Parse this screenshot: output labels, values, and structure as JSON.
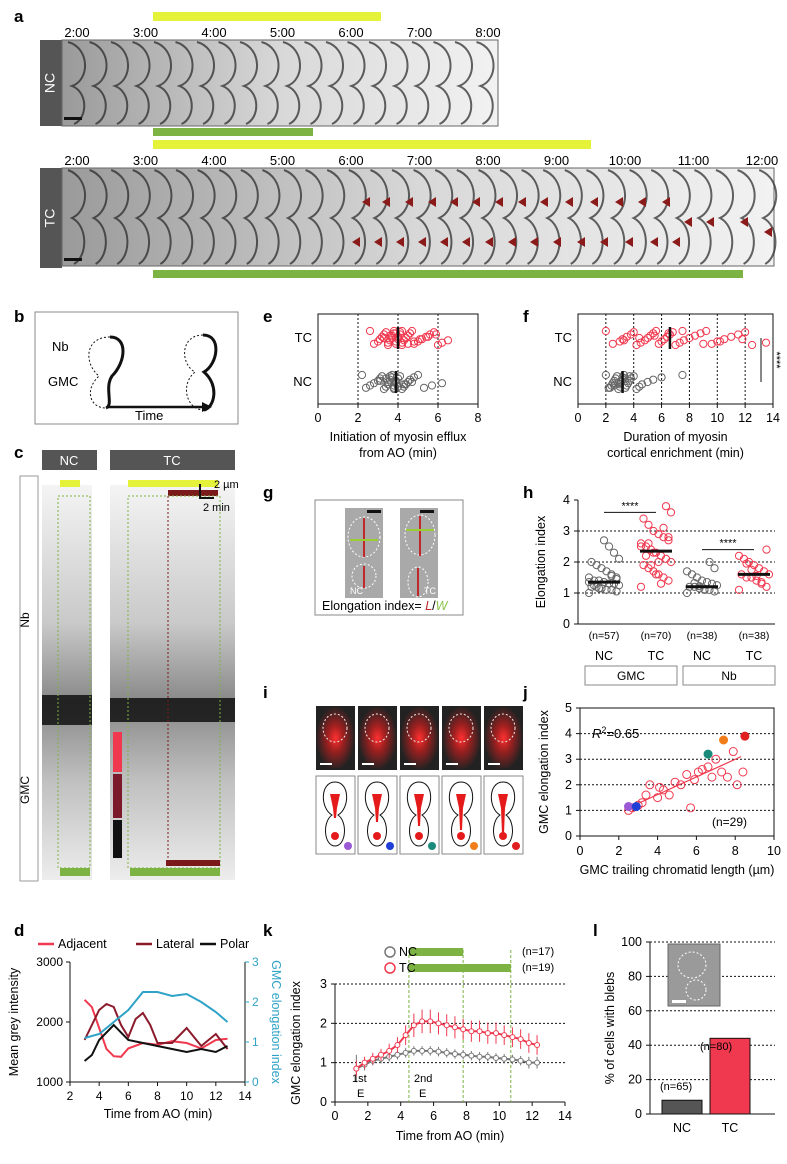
{
  "panel_letters": [
    "a",
    "b",
    "c",
    "d",
    "e",
    "f",
    "g",
    "h",
    "i",
    "j",
    "k",
    "l"
  ],
  "a": {
    "nc_label": "NC",
    "tc_label": "TC",
    "nc_times": [
      "2:00",
      "3:00",
      "4:00",
      "5:00",
      "6:00",
      "7:00",
      "8:00"
    ],
    "tc_times": [
      "2:00",
      "3:00",
      "4:00",
      "5:00",
      "6:00",
      "7:00",
      "8:00",
      "9:00",
      "10:00",
      "11:00",
      "12:00"
    ],
    "colors": {
      "yellow": "#e5f23a",
      "green": "#7cb342",
      "arrow": "#8b1a1a"
    }
  },
  "b": {
    "nb_label": "Nb",
    "gmc_label": "GMC",
    "time_label": "Time"
  },
  "c": {
    "nc_label": "NC",
    "tc_label": "TC",
    "nb_label": "Nb",
    "gmc_label": "GMC",
    "scale_um": "2 µm",
    "scale_min": "2 min"
  },
  "d": {
    "legend": [
      "Adjacent",
      "Lateral",
      "Polar"
    ]
  },
  "g": {
    "nc_label": "NC",
    "tc_label": "TC",
    "formula_prefix": "Elongation index= ",
    "formula_L": "L",
    "formula_slash": "/",
    "formula_W": "W"
  },
  "h": {
    "group_labels": [
      "GMC",
      "Nb"
    ]
  },
  "j": {
    "r2_label": "R",
    "r2_value": "=0.65",
    "r2_sup": "2",
    "n_label": "(n=29)"
  },
  "k": {
    "k_labels": [
      "1st",
      "2nd"
    ],
    "e_labels": [
      "E",
      "E"
    ],
    "legend_n": [
      "(n=17)",
      "(n=19)"
    ]
  },
  "l": {
    "n_labels": [
      "(n=65)",
      "(n=80)"
    ]
  },
  "chart_data": [
    {
      "panel": "d",
      "type": "line",
      "xlabel": "Time from AO (min)",
      "ylabel": "Mean grey intensity",
      "y2label": "GMC elongation index",
      "xlim": [
        2,
        14
      ],
      "ylim": [
        1000,
        3000
      ],
      "y2lim": [
        0,
        3
      ],
      "xticks": [
        2,
        4,
        6,
        8,
        10,
        12,
        14
      ],
      "yticks": [
        1000,
        2000,
        3000
      ],
      "y2ticks": [
        0,
        1,
        2,
        3
      ],
      "series": [
        {
          "name": "Adjacent",
          "color": "#f0394f",
          "x": [
            3,
            3.5,
            4,
            4.5,
            5,
            5.5,
            6,
            7,
            8,
            9,
            10,
            11,
            12,
            12.8
          ],
          "y": [
            2370,
            2250,
            1900,
            1550,
            1430,
            1420,
            1560,
            1650,
            1620,
            1680,
            1650,
            1560,
            1700,
            1720
          ]
        },
        {
          "name": "Lateral",
          "color": "#8b1a2a",
          "x": [
            3,
            3.5,
            4,
            4.5,
            5,
            5.5,
            6,
            6.5,
            7,
            7.5,
            8,
            9,
            10,
            11,
            12,
            12.8
          ],
          "y": [
            1700,
            1950,
            2200,
            2300,
            2250,
            1950,
            1750,
            2050,
            2150,
            1950,
            1650,
            1650,
            1900,
            1600,
            1800,
            1550
          ]
        },
        {
          "name": "Polar",
          "color": "#111111",
          "x": [
            3,
            3.5,
            4,
            5,
            6,
            7,
            8,
            9,
            10,
            11,
            12,
            12.8
          ],
          "y": [
            1350,
            1450,
            1700,
            1950,
            1700,
            1650,
            1600,
            1550,
            1500,
            1550,
            1500,
            1600
          ]
        },
        {
          "name": "GMC elongation index",
          "color": "#2fa3c7",
          "axis": "right",
          "x": [
            3,
            4,
            5,
            6,
            7,
            8,
            9,
            10,
            11,
            12,
            12.8
          ],
          "y": [
            1.1,
            1.2,
            1.5,
            1.8,
            2.25,
            2.25,
            2.15,
            2.2,
            2.0,
            1.75,
            1.5
          ]
        }
      ]
    },
    {
      "panel": "e",
      "type": "scatter",
      "xlabel": "Initiation of myosin efflux from AO (min)",
      "xlim": [
        0,
        8
      ],
      "xticks": [
        0,
        2,
        4,
        6,
        8
      ],
      "categories": [
        "TC",
        "NC"
      ],
      "series": [
        {
          "name": "TC",
          "color": "#f0394f",
          "mean": 4.0,
          "values": [
            2.6,
            2.8,
            3.0,
            3.1,
            3.2,
            3.3,
            3.4,
            3.5,
            3.5,
            3.6,
            3.7,
            3.7,
            3.8,
            3.8,
            3.9,
            3.9,
            4.0,
            4.0,
            4.1,
            4.1,
            4.2,
            4.2,
            4.3,
            4.4,
            4.5,
            4.6,
            4.7,
            4.8,
            5.0,
            5.2,
            5.4,
            5.6,
            5.8,
            6.0,
            6.2,
            6.5,
            3.3,
            3.6,
            3.9,
            4.2,
            4.5,
            4.8,
            5.1,
            5.5,
            5.9
          ]
        },
        {
          "name": "NC",
          "color": "#666666",
          "mean": 3.9,
          "values": [
            2.2,
            2.4,
            2.6,
            2.8,
            3.0,
            3.1,
            3.2,
            3.3,
            3.4,
            3.5,
            3.5,
            3.6,
            3.7,
            3.7,
            3.8,
            3.8,
            3.9,
            3.9,
            4.0,
            4.1,
            4.2,
            4.3,
            4.4,
            4.5,
            4.6,
            4.8,
            5.0,
            5.3,
            5.7,
            6.2,
            3.1,
            3.4,
            3.6,
            3.8,
            4.0,
            4.3,
            4.7
          ]
        }
      ]
    },
    {
      "panel": "f",
      "type": "scatter",
      "xlabel": "Duration of myosin cortical enrichment (min)",
      "xlim": [
        0,
        14
      ],
      "xticks": [
        0,
        2,
        4,
        6,
        8,
        10,
        12,
        14
      ],
      "categories": [
        "TC",
        "NC"
      ],
      "significance": "****",
      "series": [
        {
          "name": "TC",
          "color": "#f0394f",
          "mean": 6.6,
          "values": [
            2.0,
            2.5,
            3.0,
            3.2,
            3.5,
            3.8,
            4.0,
            4.2,
            4.5,
            4.8,
            5.0,
            5.2,
            5.4,
            5.6,
            5.8,
            6.0,
            6.2,
            6.4,
            6.6,
            6.8,
            7.0,
            7.3,
            7.6,
            8.0,
            8.4,
            8.8,
            9.2,
            9.6,
            10.0,
            10.5,
            11.0,
            11.5,
            12.0,
            12.5,
            13.5,
            3.3,
            4.4,
            5.5,
            6.5,
            7.5,
            9.0,
            10.2,
            11.8
          ]
        },
        {
          "name": "NC",
          "color": "#666666",
          "mean": 3.2,
          "values": [
            2.0,
            2.2,
            2.4,
            2.5,
            2.6,
            2.7,
            2.8,
            2.9,
            3.0,
            3.0,
            3.1,
            3.2,
            3.2,
            3.3,
            3.4,
            3.5,
            3.6,
            3.7,
            3.8,
            4.0,
            4.2,
            4.4,
            4.6,
            5.0,
            5.4,
            6.0,
            7.5,
            2.3,
            2.6,
            2.9,
            3.1,
            3.4,
            3.7
          ]
        }
      ]
    },
    {
      "panel": "h",
      "type": "scatter",
      "ylabel": "Elongation index",
      "ylim": [
        0,
        4
      ],
      "yticks": [
        0,
        1,
        2,
        3,
        4
      ],
      "categories": [
        "NC",
        "TC",
        "NC",
        "TC"
      ],
      "groups": [
        "GMC",
        "GMC",
        "Nb",
        "Nb"
      ],
      "n_labels": [
        "(n=57)",
        "(n=70)",
        "(n=38)",
        "(n=38)"
      ],
      "significance": [
        "****",
        "****"
      ],
      "series": [
        {
          "name": "GMC NC",
          "color": "#666666",
          "mean": 1.35,
          "values": [
            1.0,
            1.05,
            1.1,
            1.1,
            1.15,
            1.2,
            1.2,
            1.25,
            1.3,
            1.3,
            1.35,
            1.4,
            1.4,
            1.5,
            1.5,
            1.6,
            1.7,
            1.8,
            1.9,
            2.0,
            2.1,
            2.3,
            2.5,
            2.7,
            1.15,
            1.25,
            1.35,
            1.45,
            1.55
          ]
        },
        {
          "name": "GMC TC",
          "color": "#f0394f",
          "mean": 2.35,
          "values": [
            1.2,
            1.4,
            1.5,
            1.6,
            1.7,
            1.8,
            1.9,
            2.0,
            2.1,
            2.2,
            2.3,
            2.4,
            2.5,
            2.6,
            2.7,
            2.8,
            2.9,
            3.0,
            3.2,
            3.4,
            3.6,
            3.8,
            1.3,
            1.6,
            1.9,
            2.2,
            2.5,
            2.8,
            3.1,
            2.0,
            2.3,
            2.6
          ]
        },
        {
          "name": "Nb NC",
          "color": "#666666",
          "mean": 1.2,
          "values": [
            1.0,
            1.05,
            1.1,
            1.1,
            1.15,
            1.2,
            1.2,
            1.25,
            1.3,
            1.35,
            1.4,
            1.5,
            1.6,
            1.7,
            1.8,
            2.0,
            1.12,
            1.22,
            1.32
          ]
        },
        {
          "name": "Nb TC",
          "color": "#f0394f",
          "mean": 1.6,
          "values": [
            1.1,
            1.2,
            1.3,
            1.4,
            1.5,
            1.5,
            1.6,
            1.6,
            1.7,
            1.8,
            1.9,
            2.0,
            2.1,
            2.2,
            2.4,
            1.35,
            1.55,
            1.75,
            1.95
          ]
        }
      ]
    },
    {
      "panel": "j",
      "type": "scatter",
      "xlabel": "GMC trailing chromatid length (µm)",
      "ylabel": "GMC elongation index",
      "xlim": [
        0,
        10
      ],
      "ylim": [
        0,
        5
      ],
      "xticks": [
        0,
        2,
        4,
        6,
        8,
        10
      ],
      "yticks": [
        0,
        1,
        2,
        3,
        4,
        5
      ],
      "fit": {
        "x": [
          2.5,
          8.3
        ],
        "y": [
          1.1,
          3.1
        ]
      },
      "points": [
        [
          2.5,
          1.0
        ],
        [
          2.7,
          1.1
        ],
        [
          3.0,
          1.2
        ],
        [
          3.2,
          1.3
        ],
        [
          3.6,
          2.0
        ],
        [
          4.0,
          1.5
        ],
        [
          4.3,
          1.8
        ],
        [
          4.6,
          1.6
        ],
        [
          4.9,
          2.1
        ],
        [
          5.2,
          2.0
        ],
        [
          5.5,
          2.4
        ],
        [
          5.7,
          1.1
        ],
        [
          5.9,
          2.2
        ],
        [
          6.1,
          2.5
        ],
        [
          6.3,
          2.6
        ],
        [
          6.6,
          2.7
        ],
        [
          6.8,
          2.3
        ],
        [
          7.0,
          3.0
        ],
        [
          7.3,
          2.5
        ],
        [
          7.6,
          2.3
        ],
        [
          7.9,
          3.3
        ],
        [
          8.1,
          2.0
        ],
        [
          8.4,
          2.5
        ],
        [
          3.4,
          1.6
        ],
        [
          4.1,
          1.9
        ]
      ],
      "highlight": [
        {
          "x": 2.5,
          "y": 1.15,
          "color": "#9b59d6"
        },
        {
          "x": 2.9,
          "y": 1.15,
          "color": "#1f3fd6"
        },
        {
          "x": 6.6,
          "y": 3.2,
          "color": "#1a8a7a"
        },
        {
          "x": 7.4,
          "y": 3.75,
          "color": "#f07d1a"
        },
        {
          "x": 8.5,
          "y": 3.9,
          "color": "#e02020"
        }
      ]
    },
    {
      "panel": "k",
      "type": "line",
      "xlabel": "Time from AO (min)",
      "ylabel": "GMC elongation index",
      "xlim": [
        0,
        14
      ],
      "ylim": [
        0,
        3
      ],
      "xticks": [
        0,
        2,
        4,
        6,
        8,
        10,
        12,
        14
      ],
      "yticks": [
        0,
        1,
        2,
        3
      ],
      "series": [
        {
          "name": "NC",
          "color": "#777777",
          "x": [
            1.3,
            1.8,
            2.3,
            2.8,
            3.3,
            3.8,
            4.3,
            4.8,
            5.3,
            5.8,
            6.3,
            6.8,
            7.3,
            7.8,
            8.3,
            8.8,
            9.3,
            9.8,
            10.3,
            10.8,
            11.3,
            11.8,
            12.3
          ],
          "y": [
            0.85,
            0.95,
            1.05,
            1.1,
            1.15,
            1.2,
            1.25,
            1.3,
            1.3,
            1.3,
            1.28,
            1.25,
            1.22,
            1.2,
            1.18,
            1.15,
            1.15,
            1.12,
            1.1,
            1.08,
            1.05,
            1.0,
            1.0
          ],
          "err": [
            0.35,
            0.15,
            0.12,
            0.12,
            0.12,
            0.12,
            0.12,
            0.12,
            0.12,
            0.12,
            0.12,
            0.12,
            0.12,
            0.12,
            0.12,
            0.12,
            0.12,
            0.12,
            0.12,
            0.12,
            0.12,
            0.15,
            0.15
          ]
        },
        {
          "name": "TC",
          "color": "#f0394f",
          "x": [
            1.3,
            1.8,
            2.3,
            2.8,
            3.3,
            3.8,
            4.3,
            4.8,
            5.3,
            5.8,
            6.3,
            6.8,
            7.3,
            7.8,
            8.3,
            8.8,
            9.3,
            9.8,
            10.3,
            10.8,
            11.3,
            11.8,
            12.3
          ],
          "y": [
            0.85,
            1.0,
            1.1,
            1.2,
            1.3,
            1.45,
            1.7,
            1.95,
            2.05,
            2.05,
            2.0,
            1.95,
            1.9,
            1.85,
            1.8,
            1.8,
            1.75,
            1.75,
            1.7,
            1.65,
            1.6,
            1.5,
            1.45
          ],
          "err": [
            0.2,
            0.15,
            0.15,
            0.15,
            0.18,
            0.2,
            0.25,
            0.3,
            0.3,
            0.3,
            0.28,
            0.28,
            0.28,
            0.27,
            0.27,
            0.27,
            0.27,
            0.27,
            0.25,
            0.25,
            0.25,
            0.25,
            0.25
          ]
        }
      ],
      "bars": [
        {
          "series": "NC",
          "x": [
            4.5,
            7.8
          ]
        },
        {
          "series": "TC",
          "x": [
            4.5,
            10.7
          ]
        }
      ]
    },
    {
      "panel": "l",
      "type": "bar",
      "ylabel": "% of cells with blebs",
      "categories": [
        "NC",
        "TC"
      ],
      "values": [
        8,
        44
      ],
      "ylim": [
        0,
        100
      ],
      "yticks": [
        0,
        20,
        40,
        60,
        80,
        100
      ],
      "colors": [
        "#555555",
        "#f0394f"
      ]
    }
  ]
}
